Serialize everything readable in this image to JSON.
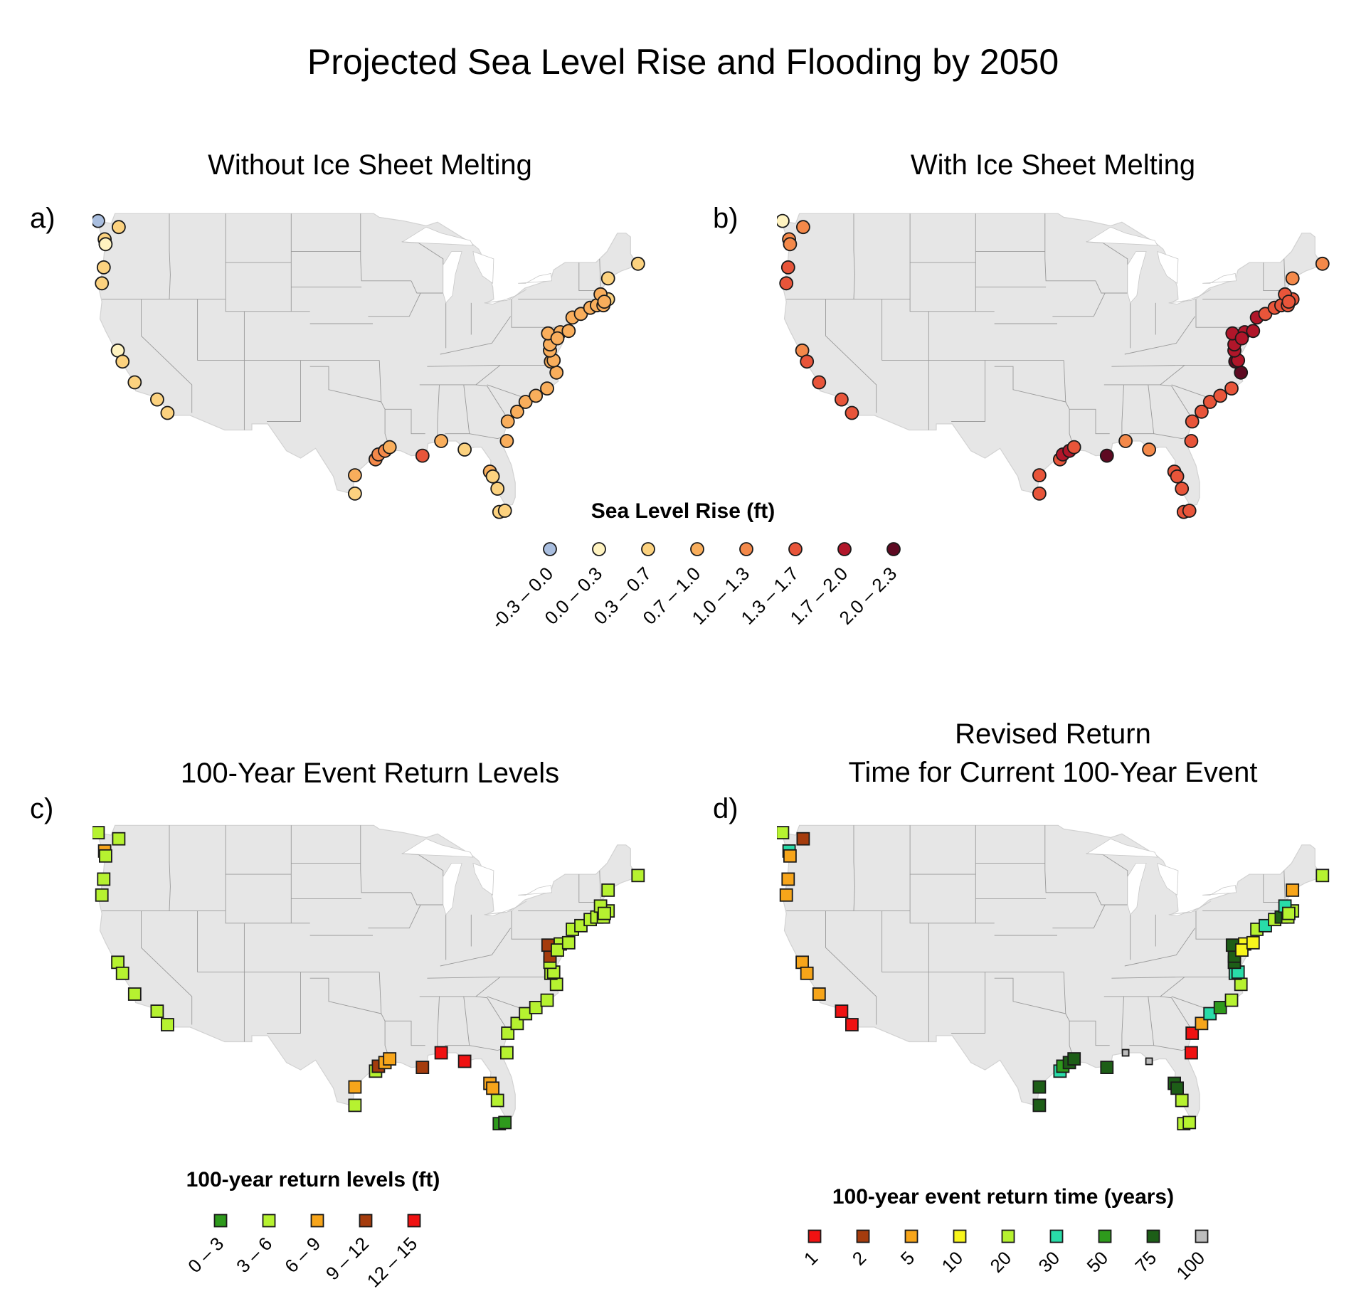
{
  "title": "Projected Sea Level Rise and Flooding by 2050",
  "colors": {
    "land": "#e6e6e6",
    "border": "#9a9a9a",
    "marker_stroke": "#1a1a1a"
  },
  "icons": {
    "map": "us-coastline-map",
    "marker_circle": "circle-marker",
    "marker_square": "square-marker"
  },
  "panels": [
    {
      "id": "a",
      "letter": "a)",
      "title": "Without Ice Sheet Melting",
      "marker": "circle"
    },
    {
      "id": "b",
      "letter": "b)",
      "title": "With Ice Sheet Melting",
      "marker": "circle"
    },
    {
      "id": "c",
      "letter": "c)",
      "title": "100-Year Event Return Levels",
      "marker": "square"
    },
    {
      "id": "d",
      "letter": "d)",
      "title": "Revised Return\nTime for Current 100-Year Event",
      "marker": "square"
    }
  ],
  "legends": {
    "sea_level": {
      "title": "Sea Level Rise (ft)",
      "items": [
        {
          "label": "-0.3 – 0.0",
          "color": "#a9bedf"
        },
        {
          "label": "0.0 – 0.3",
          "color": "#fff3c0"
        },
        {
          "label": "0.3 – 0.7",
          "color": "#fcd27f"
        },
        {
          "label": "0.7 – 1.0",
          "color": "#f9ae5c"
        },
        {
          "label": "1.0 – 1.3",
          "color": "#f4894a"
        },
        {
          "label": "1.3 – 1.7",
          "color": "#e8553a"
        },
        {
          "label": "1.7 – 2.0",
          "color": "#b1162a"
        },
        {
          "label": "2.0 – 2.3",
          "color": "#5e0a22"
        }
      ]
    },
    "return_levels": {
      "title": "100-year return levels (ft)",
      "items": [
        {
          "label": "0 – 3",
          "color": "#2e9a1c"
        },
        {
          "label": "3 – 6",
          "color": "#b6f230"
        },
        {
          "label": "6 – 9",
          "color": "#f7a51a"
        },
        {
          "label": "9 – 12",
          "color": "#a53c0d"
        },
        {
          "label": "12 – 15",
          "color": "#f01212"
        }
      ]
    },
    "return_time": {
      "title": "100-year event return time (years)",
      "items": [
        {
          "label": "1",
          "color": "#f01212"
        },
        {
          "label": "2",
          "color": "#a53c0d"
        },
        {
          "label": "5",
          "color": "#f7a51a"
        },
        {
          "label": "10",
          "color": "#f8f51c"
        },
        {
          "label": "20",
          "color": "#b6f230"
        },
        {
          "label": "30",
          "color": "#29dca8"
        },
        {
          "label": "50",
          "color": "#2e9a1c"
        },
        {
          "label": "75",
          "color": "#1d5e17"
        },
        {
          "label": "100",
          "color": "#bdbdbd"
        }
      ]
    }
  },
  "stations": {
    "a": [
      {
        "lon": -124.6,
        "lat": 48.4,
        "c": 0
      },
      {
        "lon": -122.4,
        "lat": 47.9,
        "c": 2
      },
      {
        "lon": -123.9,
        "lat": 46.9,
        "c": 2
      },
      {
        "lon": -123.8,
        "lat": 46.5,
        "c": 1
      },
      {
        "lon": -124.0,
        "lat": 44.6,
        "c": 2
      },
      {
        "lon": -124.2,
        "lat": 43.3,
        "c": 2
      },
      {
        "lon": -122.5,
        "lat": 37.8,
        "c": 1
      },
      {
        "lon": -122.0,
        "lat": 36.9,
        "c": 2
      },
      {
        "lon": -120.7,
        "lat": 35.2,
        "c": 2
      },
      {
        "lon": -118.3,
        "lat": 33.8,
        "c": 2
      },
      {
        "lon": -117.2,
        "lat": 32.7,
        "c": 2
      },
      {
        "lon": -97.2,
        "lat": 27.6,
        "c": 3
      },
      {
        "lon": -97.2,
        "lat": 26.1,
        "c": 2
      },
      {
        "lon": -95.0,
        "lat": 28.9,
        "c": 4
      },
      {
        "lon": -94.7,
        "lat": 29.3,
        "c": 4
      },
      {
        "lon": -94.0,
        "lat": 29.6,
        "c": 4
      },
      {
        "lon": -93.5,
        "lat": 29.9,
        "c": 3
      },
      {
        "lon": -90.0,
        "lat": 29.2,
        "c": 5
      },
      {
        "lon": -88.0,
        "lat": 30.4,
        "c": 3
      },
      {
        "lon": -85.5,
        "lat": 29.7,
        "c": 2
      },
      {
        "lon": -82.8,
        "lat": 27.9,
        "c": 3
      },
      {
        "lon": -82.5,
        "lat": 27.5,
        "c": 2
      },
      {
        "lon": -82.0,
        "lat": 26.5,
        "c": 2
      },
      {
        "lon": -81.8,
        "lat": 24.6,
        "c": 2
      },
      {
        "lon": -81.2,
        "lat": 24.7,
        "c": 2
      },
      {
        "lon": -81.0,
        "lat": 30.4,
        "c": 3
      },
      {
        "lon": -80.9,
        "lat": 32.0,
        "c": 3
      },
      {
        "lon": -79.9,
        "lat": 32.8,
        "c": 3
      },
      {
        "lon": -79.0,
        "lat": 33.6,
        "c": 3
      },
      {
        "lon": -77.9,
        "lat": 34.1,
        "c": 3
      },
      {
        "lon": -76.7,
        "lat": 34.7,
        "c": 3
      },
      {
        "lon": -75.7,
        "lat": 36.0,
        "c": 3
      },
      {
        "lon": -76.3,
        "lat": 36.9,
        "c": 3
      },
      {
        "lon": -76.0,
        "lat": 37.0,
        "c": 3
      },
      {
        "lon": -76.4,
        "lat": 37.8,
        "c": 3
      },
      {
        "lon": -76.4,
        "lat": 38.3,
        "c": 3
      },
      {
        "lon": -76.6,
        "lat": 39.2,
        "c": 3
      },
      {
        "lon": -75.3,
        "lat": 39.3,
        "c": 3
      },
      {
        "lon": -75.6,
        "lat": 38.8,
        "c": 3
      },
      {
        "lon": -74.4,
        "lat": 39.4,
        "c": 3
      },
      {
        "lon": -74.0,
        "lat": 40.5,
        "c": 3
      },
      {
        "lon": -73.1,
        "lat": 40.8,
        "c": 3
      },
      {
        "lon": -72.1,
        "lat": 41.3,
        "c": 3
      },
      {
        "lon": -71.4,
        "lat": 41.5,
        "c": 3
      },
      {
        "lon": -70.7,
        "lat": 41.5,
        "c": 3
      },
      {
        "lon": -70.2,
        "lat": 42.0,
        "c": 2
      },
      {
        "lon": -71.0,
        "lat": 42.4,
        "c": 3
      },
      {
        "lon": -70.6,
        "lat": 41.8,
        "c": 3
      },
      {
        "lon": -70.2,
        "lat": 43.7,
        "c": 2
      },
      {
        "lon": -67.0,
        "lat": 44.9,
        "c": 2
      }
    ],
    "b": [
      {
        "lon": -124.6,
        "lat": 48.4,
        "c": 1
      },
      {
        "lon": -122.4,
        "lat": 47.9,
        "c": 4
      },
      {
        "lon": -123.9,
        "lat": 46.9,
        "c": 4
      },
      {
        "lon": -123.8,
        "lat": 46.5,
        "c": 4
      },
      {
        "lon": -124.0,
        "lat": 44.6,
        "c": 5
      },
      {
        "lon": -124.2,
        "lat": 43.3,
        "c": 5
      },
      {
        "lon": -122.5,
        "lat": 37.8,
        "c": 4
      },
      {
        "lon": -122.0,
        "lat": 36.9,
        "c": 5
      },
      {
        "lon": -120.7,
        "lat": 35.2,
        "c": 5
      },
      {
        "lon": -118.3,
        "lat": 33.8,
        "c": 5
      },
      {
        "lon": -117.2,
        "lat": 32.7,
        "c": 5
      },
      {
        "lon": -97.2,
        "lat": 27.6,
        "c": 5
      },
      {
        "lon": -97.2,
        "lat": 26.1,
        "c": 5
      },
      {
        "lon": -95.0,
        "lat": 28.9,
        "c": 5
      },
      {
        "lon": -94.7,
        "lat": 29.3,
        "c": 6
      },
      {
        "lon": -94.0,
        "lat": 29.6,
        "c": 6
      },
      {
        "lon": -93.5,
        "lat": 29.9,
        "c": 5
      },
      {
        "lon": -90.0,
        "lat": 29.2,
        "c": 7
      },
      {
        "lon": -88.0,
        "lat": 30.4,
        "c": 4
      },
      {
        "lon": -85.5,
        "lat": 29.7,
        "c": 4
      },
      {
        "lon": -82.8,
        "lat": 27.9,
        "c": 5
      },
      {
        "lon": -82.5,
        "lat": 27.5,
        "c": 5
      },
      {
        "lon": -82.0,
        "lat": 26.5,
        "c": 5
      },
      {
        "lon": -81.8,
        "lat": 24.6,
        "c": 5
      },
      {
        "lon": -81.2,
        "lat": 24.7,
        "c": 5
      },
      {
        "lon": -81.0,
        "lat": 30.4,
        "c": 5
      },
      {
        "lon": -80.9,
        "lat": 32.0,
        "c": 5
      },
      {
        "lon": -79.9,
        "lat": 32.8,
        "c": 5
      },
      {
        "lon": -79.0,
        "lat": 33.6,
        "c": 5
      },
      {
        "lon": -77.9,
        "lat": 34.1,
        "c": 5
      },
      {
        "lon": -76.7,
        "lat": 34.7,
        "c": 5
      },
      {
        "lon": -75.7,
        "lat": 36.0,
        "c": 7
      },
      {
        "lon": -76.3,
        "lat": 36.9,
        "c": 7
      },
      {
        "lon": -76.0,
        "lat": 37.0,
        "c": 6
      },
      {
        "lon": -76.4,
        "lat": 37.8,
        "c": 6
      },
      {
        "lon": -76.4,
        "lat": 38.3,
        "c": 6
      },
      {
        "lon": -76.6,
        "lat": 39.2,
        "c": 6
      },
      {
        "lon": -75.3,
        "lat": 39.3,
        "c": 6
      },
      {
        "lon": -75.6,
        "lat": 38.8,
        "c": 6
      },
      {
        "lon": -74.4,
        "lat": 39.4,
        "c": 6
      },
      {
        "lon": -74.0,
        "lat": 40.5,
        "c": 6
      },
      {
        "lon": -73.1,
        "lat": 40.8,
        "c": 5
      },
      {
        "lon": -72.1,
        "lat": 41.3,
        "c": 5
      },
      {
        "lon": -71.4,
        "lat": 41.5,
        "c": 5
      },
      {
        "lon": -70.7,
        "lat": 41.5,
        "c": 5
      },
      {
        "lon": -70.2,
        "lat": 42.0,
        "c": 5
      },
      {
        "lon": -71.0,
        "lat": 42.4,
        "c": 5
      },
      {
        "lon": -70.6,
        "lat": 41.8,
        "c": 5
      },
      {
        "lon": -70.2,
        "lat": 43.7,
        "c": 4
      },
      {
        "lon": -67.0,
        "lat": 44.9,
        "c": 4
      }
    ],
    "c": [
      {
        "lon": -124.6,
        "lat": 48.4,
        "c": 1
      },
      {
        "lon": -122.4,
        "lat": 47.9,
        "c": 1
      },
      {
        "lon": -123.9,
        "lat": 46.9,
        "c": 2
      },
      {
        "lon": -123.8,
        "lat": 46.5,
        "c": 1
      },
      {
        "lon": -124.0,
        "lat": 44.6,
        "c": 1
      },
      {
        "lon": -124.2,
        "lat": 43.3,
        "c": 1
      },
      {
        "lon": -122.5,
        "lat": 37.8,
        "c": 1
      },
      {
        "lon": -122.0,
        "lat": 36.9,
        "c": 1
      },
      {
        "lon": -120.7,
        "lat": 35.2,
        "c": 1
      },
      {
        "lon": -118.3,
        "lat": 33.8,
        "c": 1
      },
      {
        "lon": -117.2,
        "lat": 32.7,
        "c": 1
      },
      {
        "lon": -97.2,
        "lat": 27.6,
        "c": 2
      },
      {
        "lon": -97.2,
        "lat": 26.1,
        "c": 1
      },
      {
        "lon": -95.0,
        "lat": 28.9,
        "c": 1
      },
      {
        "lon": -94.7,
        "lat": 29.3,
        "c": 3
      },
      {
        "lon": -94.0,
        "lat": 29.6,
        "c": 2
      },
      {
        "lon": -93.5,
        "lat": 29.9,
        "c": 2
      },
      {
        "lon": -90.0,
        "lat": 29.2,
        "c": 3
      },
      {
        "lon": -88.0,
        "lat": 30.4,
        "c": 4
      },
      {
        "lon": -85.5,
        "lat": 29.7,
        "c": 4
      },
      {
        "lon": -82.8,
        "lat": 27.9,
        "c": 2
      },
      {
        "lon": -82.5,
        "lat": 27.5,
        "c": 2
      },
      {
        "lon": -82.0,
        "lat": 26.5,
        "c": 1
      },
      {
        "lon": -81.8,
        "lat": 24.6,
        "c": 0
      },
      {
        "lon": -81.2,
        "lat": 24.7,
        "c": 0
      },
      {
        "lon": -81.0,
        "lat": 30.4,
        "c": 1
      },
      {
        "lon": -80.9,
        "lat": 32.0,
        "c": 1
      },
      {
        "lon": -79.9,
        "lat": 32.8,
        "c": 1
      },
      {
        "lon": -79.0,
        "lat": 33.6,
        "c": 1
      },
      {
        "lon": -77.9,
        "lat": 34.1,
        "c": 1
      },
      {
        "lon": -76.7,
        "lat": 34.7,
        "c": 1
      },
      {
        "lon": -75.7,
        "lat": 36.0,
        "c": 1
      },
      {
        "lon": -76.3,
        "lat": 36.9,
        "c": 1
      },
      {
        "lon": -76.0,
        "lat": 37.0,
        "c": 1
      },
      {
        "lon": -76.4,
        "lat": 37.8,
        "c": 1
      },
      {
        "lon": -76.4,
        "lat": 38.3,
        "c": 3
      },
      {
        "lon": -76.6,
        "lat": 39.2,
        "c": 3
      },
      {
        "lon": -75.3,
        "lat": 39.3,
        "c": 1
      },
      {
        "lon": -75.6,
        "lat": 38.8,
        "c": 1
      },
      {
        "lon": -74.4,
        "lat": 39.4,
        "c": 1
      },
      {
        "lon": -74.0,
        "lat": 40.5,
        "c": 1
      },
      {
        "lon": -73.1,
        "lat": 40.8,
        "c": 1
      },
      {
        "lon": -72.1,
        "lat": 41.3,
        "c": 1
      },
      {
        "lon": -71.4,
        "lat": 41.5,
        "c": 1
      },
      {
        "lon": -70.7,
        "lat": 41.5,
        "c": 1
      },
      {
        "lon": -70.2,
        "lat": 42.0,
        "c": 1
      },
      {
        "lon": -71.0,
        "lat": 42.4,
        "c": 1
      },
      {
        "lon": -70.6,
        "lat": 41.8,
        "c": 1
      },
      {
        "lon": -70.2,
        "lat": 43.7,
        "c": 1
      },
      {
        "lon": -67.0,
        "lat": 44.9,
        "c": 1
      }
    ],
    "d": [
      {
        "lon": -124.6,
        "lat": 48.4,
        "c": 4
      },
      {
        "lon": -122.4,
        "lat": 47.9,
        "c": 1
      },
      {
        "lon": -123.9,
        "lat": 46.9,
        "c": 5
      },
      {
        "lon": -123.8,
        "lat": 46.5,
        "c": 2
      },
      {
        "lon": -124.0,
        "lat": 44.6,
        "c": 2
      },
      {
        "lon": -124.2,
        "lat": 43.3,
        "c": 2
      },
      {
        "lon": -122.5,
        "lat": 37.8,
        "c": 2
      },
      {
        "lon": -122.0,
        "lat": 36.9,
        "c": 2
      },
      {
        "lon": -120.7,
        "lat": 35.2,
        "c": 2
      },
      {
        "lon": -118.3,
        "lat": 33.8,
        "c": 0
      },
      {
        "lon": -117.2,
        "lat": 32.7,
        "c": 0
      },
      {
        "lon": -97.2,
        "lat": 27.6,
        "c": 7
      },
      {
        "lon": -97.2,
        "lat": 26.1,
        "c": 7
      },
      {
        "lon": -95.0,
        "lat": 28.9,
        "c": 5
      },
      {
        "lon": -94.7,
        "lat": 29.3,
        "c": 6
      },
      {
        "lon": -94.0,
        "lat": 29.6,
        "c": 7
      },
      {
        "lon": -93.5,
        "lat": 29.9,
        "c": 7
      },
      {
        "lon": -90.0,
        "lat": 29.2,
        "c": 7
      },
      {
        "lon": -88.0,
        "lat": 30.4,
        "c": 8
      },
      {
        "lon": -85.5,
        "lat": 29.7,
        "c": 8
      },
      {
        "lon": -82.8,
        "lat": 27.9,
        "c": 7
      },
      {
        "lon": -82.5,
        "lat": 27.5,
        "c": 7
      },
      {
        "lon": -82.0,
        "lat": 26.5,
        "c": 4
      },
      {
        "lon": -81.8,
        "lat": 24.6,
        "c": 4
      },
      {
        "lon": -81.2,
        "lat": 24.7,
        "c": 4
      },
      {
        "lon": -81.0,
        "lat": 30.4,
        "c": 0
      },
      {
        "lon": -80.9,
        "lat": 32.0,
        "c": 0
      },
      {
        "lon": -79.9,
        "lat": 32.8,
        "c": 2
      },
      {
        "lon": -79.0,
        "lat": 33.6,
        "c": 5
      },
      {
        "lon": -77.9,
        "lat": 34.1,
        "c": 6
      },
      {
        "lon": -76.7,
        "lat": 34.7,
        "c": 4
      },
      {
        "lon": -75.7,
        "lat": 36.0,
        "c": 4
      },
      {
        "lon": -76.3,
        "lat": 36.9,
        "c": 5
      },
      {
        "lon": -76.0,
        "lat": 37.0,
        "c": 5
      },
      {
        "lon": -76.4,
        "lat": 37.8,
        "c": 7
      },
      {
        "lon": -76.4,
        "lat": 38.3,
        "c": 7
      },
      {
        "lon": -76.6,
        "lat": 39.2,
        "c": 7
      },
      {
        "lon": -75.3,
        "lat": 39.3,
        "c": 3
      },
      {
        "lon": -75.6,
        "lat": 38.8,
        "c": 3
      },
      {
        "lon": -74.4,
        "lat": 39.4,
        "c": 3
      },
      {
        "lon": -74.0,
        "lat": 40.5,
        "c": 4
      },
      {
        "lon": -73.1,
        "lat": 40.8,
        "c": 5
      },
      {
        "lon": -72.1,
        "lat": 41.3,
        "c": 4
      },
      {
        "lon": -71.4,
        "lat": 41.5,
        "c": 7
      },
      {
        "lon": -70.7,
        "lat": 41.5,
        "c": 4
      },
      {
        "lon": -70.2,
        "lat": 42.0,
        "c": 4
      },
      {
        "lon": -71.0,
        "lat": 42.4,
        "c": 5
      },
      {
        "lon": -70.6,
        "lat": 41.8,
        "c": 4
      },
      {
        "lon": -70.2,
        "lat": 43.7,
        "c": 2
      },
      {
        "lon": -67.0,
        "lat": 44.9,
        "c": 4
      }
    ]
  }
}
